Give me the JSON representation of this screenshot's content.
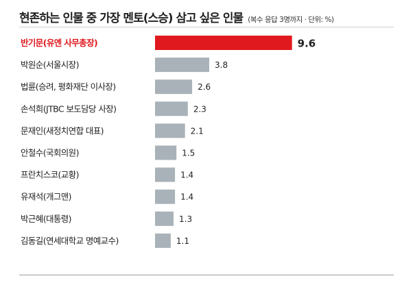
{
  "header": {
    "title": "현존하는 인물 중 가장 멘토(스승) 삼고 싶은 인물",
    "subtitle": "(복수 응답 3명까지 · 단위: %)"
  },
  "colors": {
    "highlight": "#e0191e",
    "highlight_text": "#e0191e",
    "bar": "#a9b2b8",
    "label": "#1f1f1f"
  },
  "chart_data": {
    "type": "bar",
    "orientation": "horizontal",
    "title": "현존하는 인물 중 가장 멘토(스승) 삼고 싶은 인물",
    "subtitle": "(복수 응답 3명까지 · 단위: %)",
    "xlabel": "",
    "ylabel": "",
    "xlim": [
      0,
      10
    ],
    "grid": false,
    "highlight_index": 0,
    "categories": [
      "반기문(유엔 사무총장)",
      "박원순(서울시장)",
      "법륜(승려, 평화재단 이사장)",
      "손석희(JTBC 보도담당 사장)",
      "문재인(새정치연합 대표)",
      "안철수(국회의원)",
      "프란치스코(교황)",
      "유재석(개그맨)",
      "박근혜(대통령)",
      "김동길(연세대학교 명예교수)"
    ],
    "values": [
      9.6,
      3.8,
      2.6,
      2.3,
      2.1,
      1.5,
      1.4,
      1.4,
      1.3,
      1.1
    ],
    "value_labels": [
      "9.6",
      "3.8",
      "2.6",
      "2.3",
      "2.1",
      "1.5",
      "1.4",
      "1.4",
      "1.3",
      "1.1"
    ]
  }
}
